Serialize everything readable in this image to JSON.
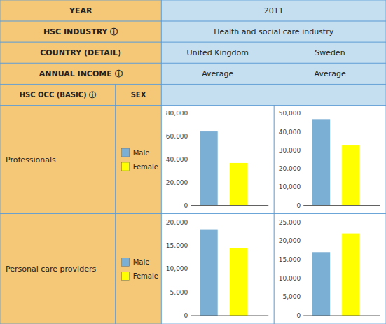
{
  "chart_data": [
    {
      "type": "bar",
      "title": "United Kingdom",
      "subtitle": "Average",
      "y_label": "Professionals",
      "annotations": [
        "YEAR",
        "2011",
        "HSC INDUSTRY ⓘ",
        "Health and social care industry",
        "COUNTRY (DETAIL)",
        "ANNUAL INCOME ⓘ",
        "HSC OCC (BASIC) ⓘ",
        "SEX"
      ],
      "categories": [
        null
      ],
      "series": [
        {
          "name": "Male",
          "color": "#7bafd4",
          "values": [
            65000
          ]
        },
        {
          "name": "Female",
          "color": "#ffff00",
          "values": [
            37000
          ]
        }
      ],
      "ylim": [
        0,
        80000
      ],
      "yticks": [
        0,
        {
          "value": 20000,
          "label": "20,000"
        },
        {
          "value": 40000,
          "label": "40,000"
        },
        {
          "value": 60000,
          "label": "60,000"
        },
        {
          "value": 80000,
          "label": "80,000"
        }
      ],
      "grid": false,
      "tick_labels": "y"
    },
    {
      "type": "bar",
      "title": "Sweden",
      "subtitle": "Average",
      "categories": [
        null
      ],
      "series": [
        {
          "name": "Male",
          "color": "#7bafd4",
          "values": [
            47000
          ]
        },
        {
          "name": "Female",
          "color": "#ffff00",
          "values": [
            33000
          ]
        }
      ],
      "ylim": [
        0,
        50000
      ],
      "yticks": [
        0,
        {
          "value": 10000,
          "label": "10,000"
        },
        {
          "value": 20000,
          "label": "20,000"
        },
        {
          "value": 30000,
          "label": "30,000"
        },
        {
          "value": 40000,
          "label": "40,000"
        },
        {
          "value": 50000,
          "label": "50,000"
        }
      ],
      "grid": false,
      "tick_labels": "y"
    },
    {
      "type": "bar",
      "y_label": "Personal care providers",
      "categories": [
        null
      ],
      "series": [
        {
          "name": "Male",
          "color": "#7bafd4",
          "values": [
            18500
          ]
        },
        {
          "name": "Female",
          "color": "#ffff00",
          "values": [
            14500
          ]
        }
      ],
      "ylim": [
        0,
        20000
      ],
      "yticks": [
        0,
        {
          "value": 5000,
          "label": "5,000"
        },
        {
          "value": 10000,
          "label": "10,000"
        },
        {
          "value": 15000,
          "label": "15,000"
        },
        {
          "value": 20000,
          "label": "20,000"
        }
      ],
      "grid": false,
      "tick_labels": "y"
    },
    {
      "type": "bar",
      "categories": [
        null
      ],
      "series": [
        {
          "name": "Male",
          "color": "#7bafd4",
          "values": [
            17000
          ]
        },
        {
          "name": "Female",
          "color": "#ffff00",
          "values": [
            22000
          ]
        }
      ],
      "ylim": [
        0,
        25000
      ],
      "yticks": [
        0,
        {
          "value": 5000,
          "label": "5,000"
        },
        {
          "value": 10000,
          "label": "10,000"
        },
        {
          "value": 15000,
          "label": "15,000"
        },
        {
          "value": 20000,
          "label": "20,000"
        },
        {
          "value": 25000,
          "label": "25,000"
        }
      ],
      "grid": false,
      "tick_labels": "y"
    }
  ]
}
